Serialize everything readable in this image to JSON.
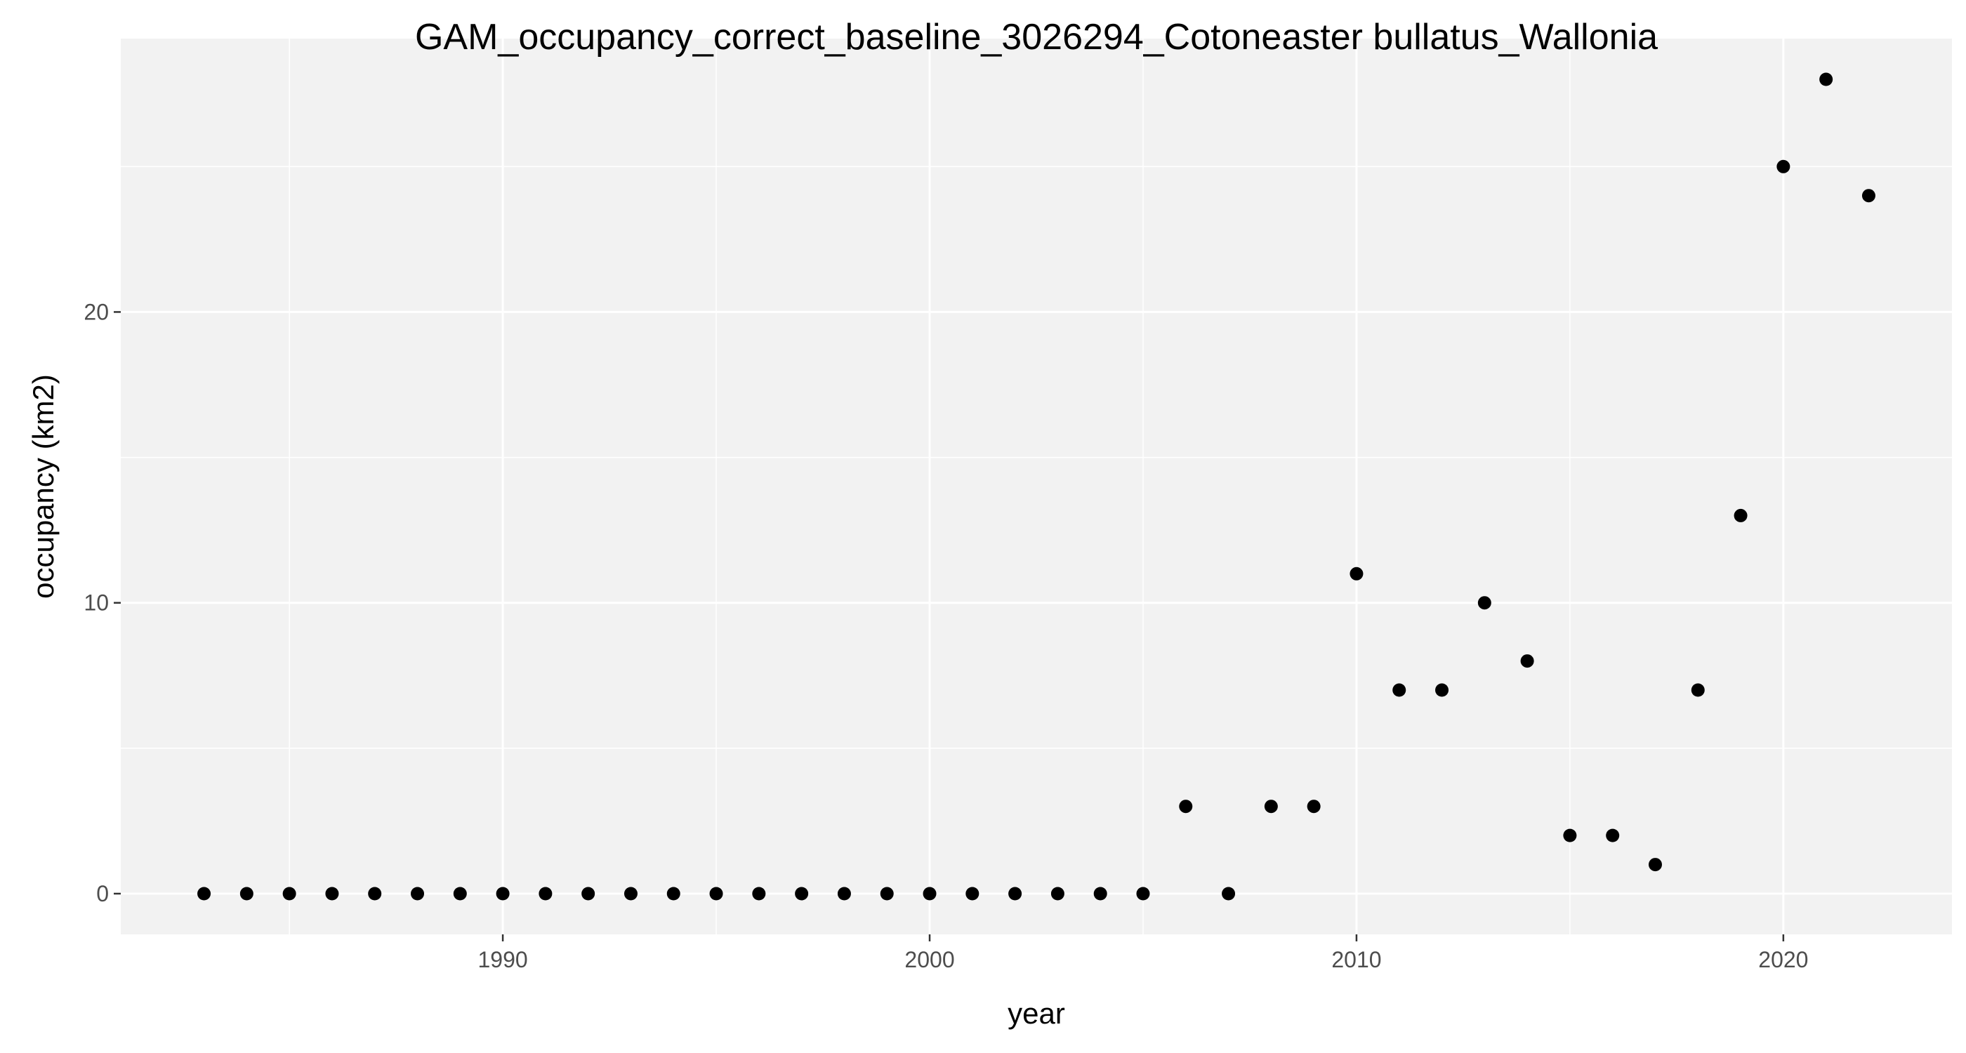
{
  "chart_data": {
    "type": "scatter",
    "title": "GAM_occupancy_correct_baseline_3026294_Cotoneaster bullatus_Wallonia",
    "xlabel": "year",
    "ylabel": "occupancy (km2)",
    "xlim": [
      1981.05,
      2023.95
    ],
    "ylim": [
      -1.4,
      29.4
    ],
    "x_ticks": [
      1990,
      2000,
      2010,
      2020
    ],
    "x_minor_ticks": [
      1985,
      1995,
      2005,
      2015
    ],
    "y_ticks": [
      0,
      10,
      20
    ],
    "y_minor_ticks": [
      5,
      15,
      25
    ],
    "grid": true,
    "legend": "none",
    "colors": {
      "panel": "#f2f2f2",
      "grid": "#ffffff",
      "point": "#000000",
      "tick": "#4d4d4d"
    },
    "series": [
      {
        "x": [
          1983,
          1984,
          1985,
          1986,
          1987,
          1988,
          1989,
          1990,
          1991,
          1992,
          1993,
          1994,
          1995,
          1996,
          1997,
          1998,
          1999,
          2000,
          2001,
          2002,
          2003,
          2004,
          2005,
          2006,
          2007,
          2008,
          2009,
          2010,
          2011,
          2012,
          2013,
          2014,
          2015,
          2016,
          2017,
          2018,
          2019,
          2020,
          2021,
          2022
        ],
        "y": [
          0,
          0,
          0,
          0,
          0,
          0,
          0,
          0,
          0,
          0,
          0,
          0,
          0,
          0,
          0,
          0,
          0,
          0,
          0,
          0,
          0,
          0,
          0,
          3,
          0,
          3,
          3,
          11,
          7,
          7,
          10,
          8,
          2,
          2,
          1,
          7,
          13,
          25,
          28,
          24
        ]
      }
    ]
  }
}
